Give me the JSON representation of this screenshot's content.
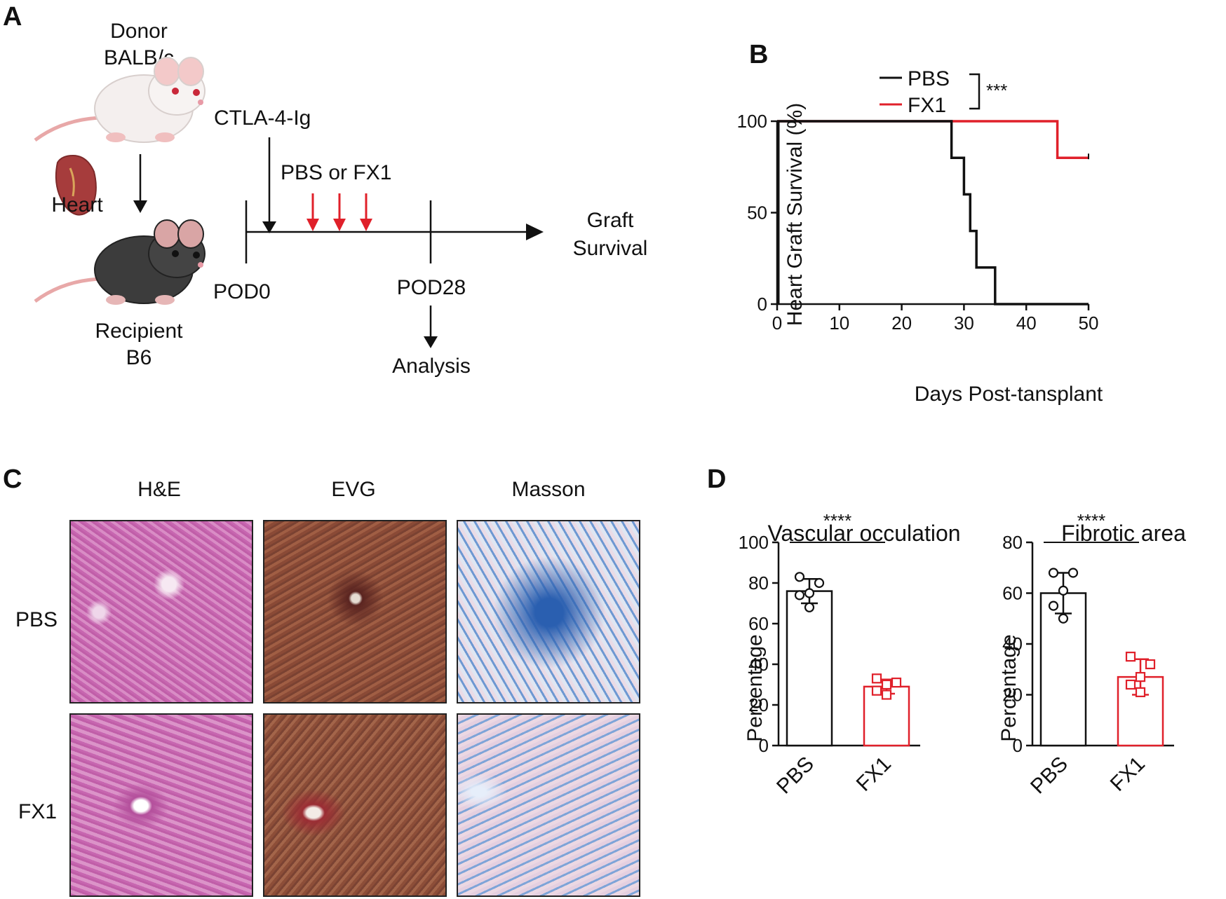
{
  "panel_labels": [
    "A",
    "B",
    "C",
    "D"
  ],
  "panel_a": {
    "donor_line1": "Donor",
    "donor_line2": "BALB/c",
    "organ": "Heart",
    "recipient_line1": "Recipient",
    "recipient_line2": "B6",
    "ctla": "CTLA-4-Ig",
    "treatment": "PBS or FX1",
    "pod0": "POD0",
    "pod28": "POD28",
    "analysis": "Analysis",
    "graft_line1": "Graft",
    "graft_line2": "Survival",
    "treatment_arrow_color": "#e0202a"
  },
  "panel_c": {
    "columns": [
      "H&E",
      "EVG",
      "Masson"
    ],
    "rows": [
      "PBS",
      "FX1"
    ],
    "stain_colors": {
      "he": "#d47bbd",
      "evg": "#8a4a36",
      "masson": "#8fb2dc"
    }
  },
  "colors": {
    "pbs": "#111111",
    "fx1": "#e0202a"
  },
  "chart_data": [
    {
      "type": "line",
      "subtype": "kaplan-meier",
      "title": "",
      "xlabel": "Days Post-tansplant",
      "ylabel": "Heart Graft Survival (%)",
      "xlim": [
        0,
        50
      ],
      "ylim": [
        0,
        100
      ],
      "xticks": [
        0,
        10,
        20,
        30,
        40,
        50
      ],
      "yticks": [
        0,
        50,
        100
      ],
      "legend_position": "top-center",
      "significance": "***",
      "series": [
        {
          "name": "PBS",
          "color": "#111111",
          "steps": [
            [
              0,
              100
            ],
            [
              28,
              100
            ],
            [
              28,
              80
            ],
            [
              30,
              80
            ],
            [
              30,
              60
            ],
            [
              31,
              60
            ],
            [
              31,
              40
            ],
            [
              32,
              40
            ],
            [
              32,
              20
            ],
            [
              35,
              20
            ],
            [
              35,
              0
            ],
            [
              50,
              0
            ]
          ]
        },
        {
          "name": "FX1",
          "color": "#e0202a",
          "steps": [
            [
              0,
              100
            ],
            [
              45,
              100
            ],
            [
              45,
              80
            ],
            [
              50,
              80
            ]
          ]
        }
      ]
    },
    {
      "type": "bar",
      "title": "Vascular occulation",
      "ylabel": "Percentage",
      "ylim": [
        0,
        100
      ],
      "yticks": [
        0,
        20,
        40,
        60,
        80,
        100
      ],
      "categories": [
        "PBS",
        "FX1"
      ],
      "significance": "****",
      "bars": [
        {
          "category": "PBS",
          "mean": 76,
          "sd": 6,
          "color": "#111111",
          "marker": "circle",
          "points": [
            83,
            80,
            75,
            74,
            68
          ]
        },
        {
          "category": "FX1",
          "mean": 29,
          "sd": 3.5,
          "color": "#e0202a",
          "marker": "square",
          "points": [
            33,
            31,
            30,
            27,
            25
          ]
        }
      ]
    },
    {
      "type": "bar",
      "title": "Fibrotic area",
      "ylabel": "Percentage",
      "ylim": [
        0,
        80
      ],
      "yticks": [
        0,
        20,
        40,
        60,
        80
      ],
      "categories": [
        "PBS",
        "FX1"
      ],
      "significance": "****",
      "bars": [
        {
          "category": "PBS",
          "mean": 60,
          "sd": 8,
          "color": "#111111",
          "marker": "circle",
          "points": [
            68,
            68,
            61,
            55,
            50
          ]
        },
        {
          "category": "FX1",
          "mean": 27,
          "sd": 7,
          "color": "#e0202a",
          "marker": "square",
          "points": [
            35,
            32,
            27,
            24,
            21
          ]
        }
      ]
    }
  ]
}
